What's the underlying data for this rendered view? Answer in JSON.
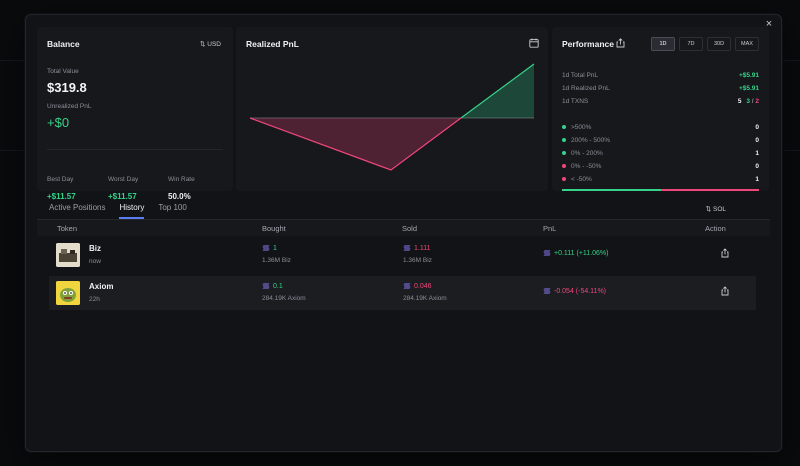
{
  "modal": {
    "close_label": "×"
  },
  "balance": {
    "title": "Balance",
    "currency_toggle": "USD",
    "total_label": "Total Value",
    "total_value": "$319.8",
    "unrealized_label": "Unrealized PnL",
    "unrealized_value": "+$0",
    "stats": [
      {
        "label": "Best Day",
        "value": "+$11.57"
      },
      {
        "label": "Worst Day",
        "value": "+$11.57"
      },
      {
        "label": "Win Rate",
        "value": "50.0%"
      }
    ]
  },
  "realized": {
    "title": "Realized PnL",
    "icon": "calendar-icon"
  },
  "performance": {
    "title": "Performance",
    "timeframes": [
      "1D",
      "7D",
      "30D",
      "MAX"
    ],
    "active_timeframe": "1D",
    "summary": [
      {
        "label": "1d Total PnL",
        "value": "+$5.91"
      },
      {
        "label": "1d Realized PnL",
        "value": "+$5.91"
      }
    ],
    "txns_label": "1d TXNS",
    "txns_total": "5",
    "txns_buys": "3",
    "txns_separator": "/",
    "txns_sells": "2",
    "buckets": [
      {
        "label": ">500%",
        "count": "0",
        "color": "#35d38a"
      },
      {
        "label": "200% - 500%",
        "count": "0",
        "color": "#35d38a"
      },
      {
        "label": "0% - 200%",
        "count": "1",
        "color": "#35d38a"
      },
      {
        "label": "0% - -50%",
        "count": "0",
        "color": "#f0477a"
      },
      {
        "label": "< -50%",
        "count": "1",
        "color": "#f0477a"
      }
    ],
    "win_fraction": 0.5
  },
  "tabs": {
    "items": [
      "Active Positions",
      "History",
      "Top 100"
    ],
    "active": "History",
    "unit_toggle": "SOL"
  },
  "table": {
    "headers": [
      "Token",
      "Bought",
      "Sold",
      "PnL",
      "Action"
    ],
    "rows": [
      {
        "name": "Biz",
        "time": "now",
        "bought": "1",
        "bought_sub": "1.36M Biz",
        "sold": "1.111",
        "sold_sub": "1.36M Biz",
        "pnl": "+0.111 (+11.06%)"
      },
      {
        "name": "Axiom",
        "time": "22h",
        "bought": "0.1",
        "bought_sub": "284.19K Axiom",
        "sold": "0.046",
        "sold_sub": "284.19K Axiom",
        "pnl": "-0.054 (-54.11%)"
      }
    ]
  },
  "colors": {
    "positive": "#35d38a",
    "negative": "#f0477a",
    "accent": "#5b7cf0"
  }
}
